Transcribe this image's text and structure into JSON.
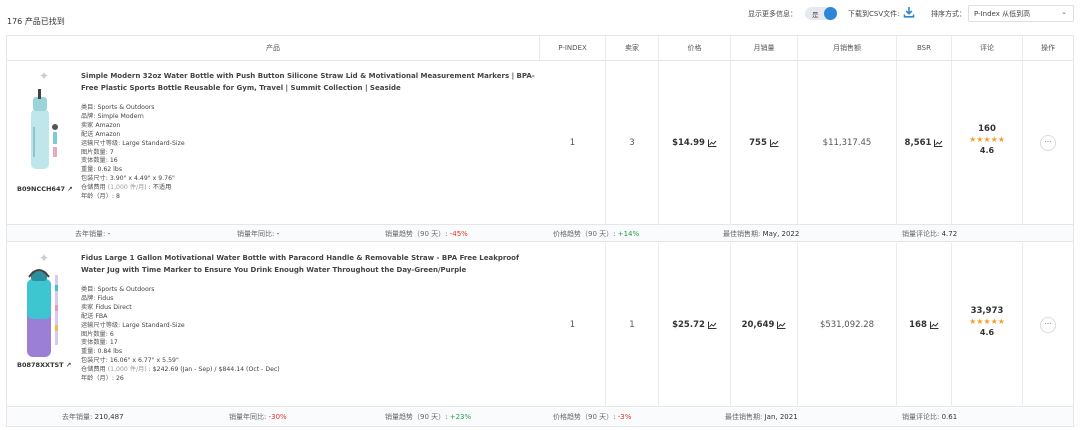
{
  "header": {
    "found_count": "176 产品已找到",
    "more_info_label": "显示更多信息：",
    "toggle_text": "是",
    "csv_label": "下载到CSV文件:",
    "sort_label": "排序方式：",
    "sort_value": "P-Index 从低到高"
  },
  "columns": {
    "product": "产品",
    "pindex": "P-INDEX",
    "sellers": "卖家",
    "price": "价格",
    "monthly_sales": "月销量",
    "monthly_revenue": "月销售额",
    "bsr": "BSR",
    "reviews": "评论",
    "actions": "操作"
  },
  "products": [
    {
      "asin": "B09NCCH647",
      "title": "Simple Modern 32oz Water Bottle with Push Button Silicone Straw Lid & Motivational Measurement Markers | BPA-Free Plastic Sports Bottle Reusable for Gym, Travel | Summit Collection | Seaside",
      "category_label": "类目:",
      "category": "Sports & Outdoors",
      "brand_label": "品牌:",
      "brand": "Simple Modern",
      "seller_label": "卖家",
      "seller": "Amazon",
      "fulfill_label": "配送",
      "fulfill": "Amazon",
      "size_label": "运输尺寸等级:",
      "size": "Large Standard-Size",
      "images_label": "图片数量:",
      "images": "7",
      "variants_label": "变体数量:",
      "variants": "16",
      "weight_label": "重量:",
      "weight": "0.62 lbs",
      "dims_label": "包装尺寸:",
      "dims": "3.90\" x 4.49\" x 9.76\"",
      "storage_label": "仓储费用",
      "storage_unit": "(1,000 件/月)",
      "storage_sep": ":",
      "storage": "不适用",
      "age_label": "年龄（月）:",
      "age": "8",
      "pindex": "1",
      "sellers": "3",
      "price": "$14.99",
      "monthly_sales": "755",
      "monthly_revenue": "$11,317.45",
      "bsr": "8,561",
      "review_count": "160",
      "stars": "★★★★★",
      "rating": "4.6",
      "more": "···",
      "stats": {
        "last_year_label": "去年销量:",
        "last_year": "-",
        "yoy_label": "销量年同比:",
        "yoy": "-",
        "sales_trend_label": "销量趋势（90 天）:",
        "sales_trend": "-45%",
        "price_trend_label": "价格趋势（90 天）:",
        "price_trend": "+14%",
        "best_period_label": "最佳销售期:",
        "best_period": "May, 2022",
        "review_ratio_label": "销量评论比:",
        "review_ratio": "4.72"
      }
    },
    {
      "asin": "B0878XXTST",
      "title": "Fidus Large 1 Gallon Motivational Water Bottle with Paracord Handle & Removable Straw - BPA Free Leakproof Water Jug with Time Marker to Ensure You Drink Enough Water Throughout the Day-Green/Purple",
      "category_label": "类目:",
      "category": "Sports & Outdoors",
      "brand_label": "品牌:",
      "brand": "Fidus",
      "seller_label": "卖家",
      "seller": "Fidus Direct",
      "fulfill_label": "配送",
      "fulfill": "FBA",
      "size_label": "运输尺寸等级:",
      "size": "Large Standard-Size",
      "images_label": "图片数量:",
      "images": "6",
      "variants_label": "变体数量:",
      "variants": "17",
      "weight_label": "重量:",
      "weight": "0.84 lbs",
      "dims_label": "包装尺寸:",
      "dims": "16.06\" x 6.77\" x 5.59\"",
      "storage_label": "仓储费用",
      "storage_unit": "(1,000 件/月)",
      "storage_sep": ":",
      "storage": "$242.69 (Jan - Sep) / $844.14 (Oct - Dec)",
      "age_label": "年龄（月）:",
      "age": "26",
      "pindex": "1",
      "sellers": "1",
      "price": "$25.72",
      "monthly_sales": "20,649",
      "monthly_revenue": "$531,092.28",
      "bsr": "168",
      "review_count": "33,973",
      "stars": "★★★★★",
      "rating": "4.6",
      "more": "···",
      "stats": {
        "last_year_label": "去年销量:",
        "last_year": "210,487",
        "yoy_label": "销量年同比:",
        "yoy": "-30%",
        "sales_trend_label": "销量趋势（90 天）:",
        "sales_trend": "+23%",
        "price_trend_label": "价格趋势（90 天）:",
        "price_trend": "-3%",
        "best_period_label": "最佳销售期:",
        "best_period": "Jan, 2021",
        "review_ratio_label": "销量评论比:",
        "review_ratio": "0.61"
      }
    }
  ],
  "colors": {
    "accent": "#2d86d8",
    "star": "#f0a030",
    "negative": "#e0332f",
    "positive": "#21a34a"
  }
}
